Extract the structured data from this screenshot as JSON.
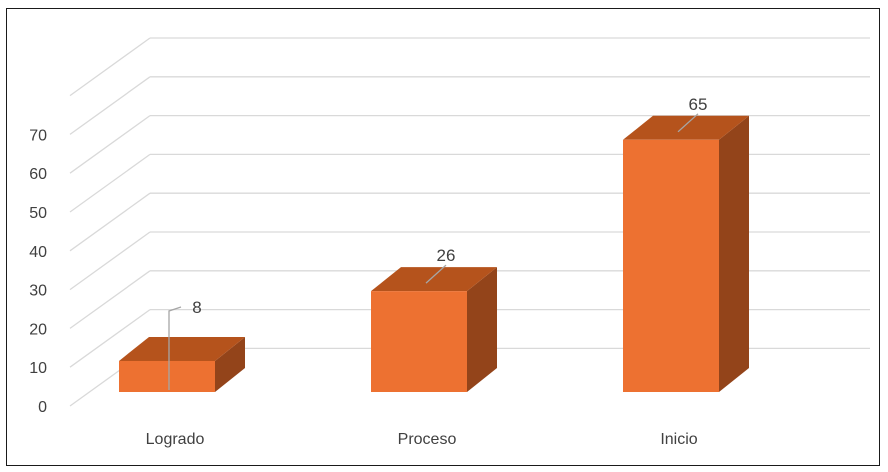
{
  "chart_data": {
    "type": "bar",
    "style": "3d-column",
    "categories": [
      "Logrado",
      "Proceso",
      "Inicio"
    ],
    "values": [
      8,
      26,
      65
    ],
    "data_labels": [
      "8",
      "26",
      "65"
    ],
    "y_ticks": [
      "0",
      "10",
      "20",
      "30",
      "40",
      "50",
      "60",
      "70"
    ],
    "ylim": [
      0,
      80
    ],
    "grid": true,
    "legend": "none",
    "colors": {
      "front": "#ED7131",
      "top": "#B5531C",
      "side": "#93441A",
      "grid": "#D9D9D9",
      "text": "#404040",
      "leader": "#A6A6A6"
    }
  }
}
